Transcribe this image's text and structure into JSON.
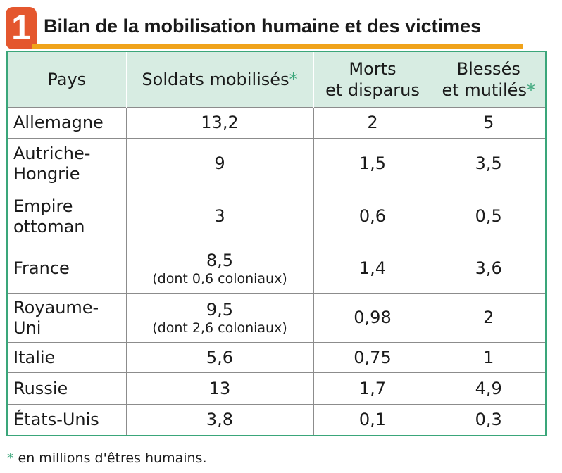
{
  "header": {
    "number": "1",
    "title": "Bilan de la mobilisation humaine et des victimes"
  },
  "columns": {
    "country": "Pays",
    "soldiers": "Soldats mobilisés",
    "soldiers_mark": "*",
    "dead_line1": "Morts",
    "dead_line2": "et disparus",
    "wounded_line1": "Blessés",
    "wounded_line2": "et mutilés",
    "wounded_mark": "*"
  },
  "rows": [
    {
      "country_l1": "Allemagne",
      "country_l2": "",
      "soldiers": "13,2",
      "soldiers_note": "",
      "dead": "2",
      "wounded": "5"
    },
    {
      "country_l1": "Autriche-",
      "country_l2": "Hongrie",
      "soldiers": "9",
      "soldiers_note": "",
      "dead": "1,5",
      "wounded": "3,5"
    },
    {
      "country_l1": "Empire",
      "country_l2": "ottoman",
      "soldiers": "3",
      "soldiers_note": "",
      "dead": "0,6",
      "wounded": "0,5"
    },
    {
      "country_l1": "France",
      "country_l2": "",
      "soldiers": "8,5",
      "soldiers_note": "(dont 0,6 coloniaux)",
      "dead": "1,4",
      "wounded": "3,6"
    },
    {
      "country_l1": "Royaume-Uni",
      "country_l2": "",
      "soldiers": "9,5",
      "soldiers_note": "(dont 2,6 coloniaux)",
      "dead": "0,98",
      "wounded": "2"
    },
    {
      "country_l1": "Italie",
      "country_l2": "",
      "soldiers": "5,6",
      "soldiers_note": "",
      "dead": "0,75",
      "wounded": "1"
    },
    {
      "country_l1": "Russie",
      "country_l2": "",
      "soldiers": "13",
      "soldiers_note": "",
      "dead": "1,7",
      "wounded": "4,9"
    },
    {
      "country_l1": "États-Unis",
      "country_l2": "",
      "soldiers": "3,8",
      "soldiers_note": "",
      "dead": "0,1",
      "wounded": "0,3"
    }
  ],
  "footnote": {
    "mark": "*",
    "text": " en millions d'êtres humains."
  },
  "colors": {
    "badge": "#e4572e",
    "title_rule": "#f0a31b",
    "header_bg": "#d7ece2",
    "accent_green": "#3aa67a"
  }
}
